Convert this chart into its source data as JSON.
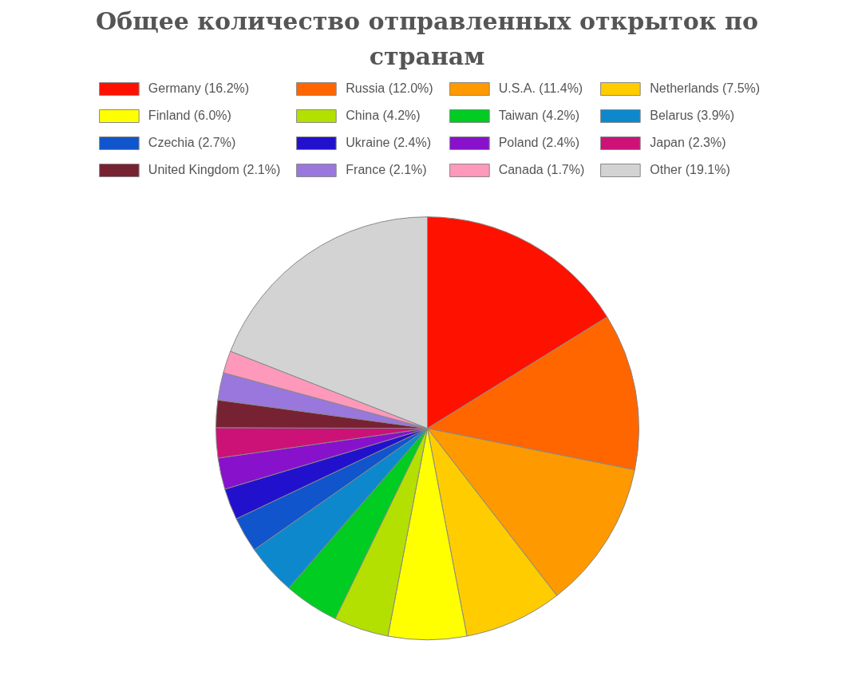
{
  "chart_data": {
    "type": "pie",
    "title": "Общее количество отправленных открыток по странам",
    "categories": [
      "Germany",
      "Russia",
      "U.S.A.",
      "Netherlands",
      "Finland",
      "China",
      "Taiwan",
      "Belarus",
      "Czechia",
      "Ukraine",
      "Poland",
      "Japan",
      "United Kingdom",
      "France",
      "Canada",
      "Other"
    ],
    "values": [
      16.2,
      12.0,
      11.4,
      7.5,
      6.0,
      4.2,
      4.2,
      3.9,
      2.7,
      2.4,
      2.4,
      2.3,
      2.1,
      2.1,
      1.7,
      19.1
    ],
    "value_labels": [
      "(16.2%)",
      "(12.0%)",
      "(11.4%)",
      "(7.5%)",
      "(6.0%)",
      "(4.2%)",
      "(4.2%)",
      "(3.9%)",
      "(2.7%)",
      "(2.4%)",
      "(2.4%)",
      "(2.3%)",
      "(2.1%)",
      "(2.1%)",
      "(1.7%)",
      "(19.1%)"
    ],
    "colors": [
      "#ff1100",
      "#ff6600",
      "#ff9900",
      "#ffcc00",
      "#ffff00",
      "#b3e000",
      "#00cc22",
      "#0e88cc",
      "#1155cc",
      "#2211cc",
      "#8811cc",
      "#cc1177",
      "#772233",
      "#9977dd",
      "#ff99bb",
      "#d3d3d3"
    ],
    "legend": "top"
  }
}
